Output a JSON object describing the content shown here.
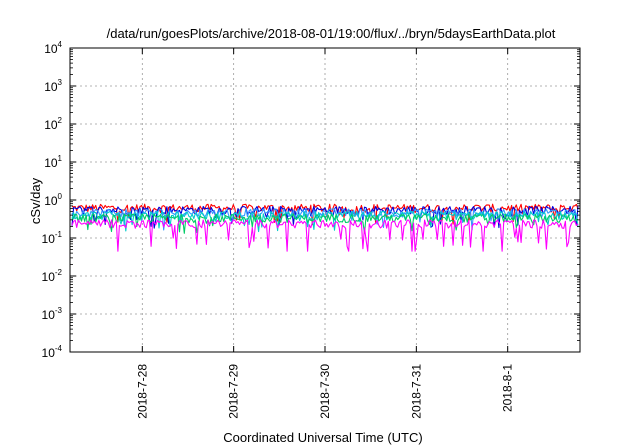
{
  "chart_data": {
    "type": "line",
    "title": "/data/run/goesPlots/archive/2018-08-01/19:00/flux/../bryn/5daysEarthData.plot",
    "xlabel": "Coordinated Universal Time (UTC)",
    "ylabel": "cSv/day",
    "y_scale": "log",
    "ylim": [
      0.0001,
      10000
    ],
    "y_ticks": [
      {
        "base": "10",
        "exp": "-4"
      },
      {
        "base": "10",
        "exp": "-3"
      },
      {
        "base": "10",
        "exp": "-2"
      },
      {
        "base": "10",
        "exp": "-1"
      },
      {
        "base": "10",
        "exp": "0"
      },
      {
        "base": "10",
        "exp": "1"
      },
      {
        "base": "10",
        "exp": "2"
      },
      {
        "base": "10",
        "exp": "3"
      },
      {
        "base": "10",
        "exp": "4"
      }
    ],
    "xlim": [
      "2018-07-27T05:00",
      "2018-08-01T19:00"
    ],
    "x_ticks": [
      "2018-7-28",
      "2018-7-29",
      "2018-7-30",
      "2018-7-31",
      "2018-8-1"
    ],
    "grid": true,
    "series": [
      {
        "color": "#ff0000",
        "level": 0.62,
        "low": 0.4
      },
      {
        "color": "#0000dd",
        "level": 0.55,
        "low": 0.36
      },
      {
        "color": "#3399ff",
        "level": 0.47,
        "low": 0.32
      },
      {
        "color": "#00cccc",
        "level": 0.4,
        "low": 0.29
      },
      {
        "color": "#00cc66",
        "level": 0.34,
        "low": 0.26
      },
      {
        "color": "#ff00ff",
        "level": 0.24,
        "low": 0.1
      }
    ]
  }
}
